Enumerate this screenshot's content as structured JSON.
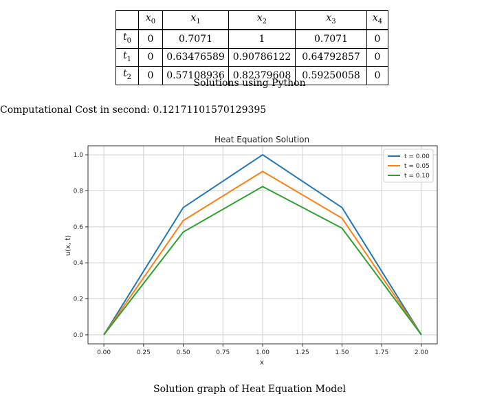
{
  "table": {
    "columns": [
      "x0",
      "x1",
      "x2",
      "x3",
      "x4"
    ],
    "rows": [
      {
        "label": "t0",
        "values": [
          "0",
          "0.7071",
          "1",
          "0.7071",
          "0"
        ]
      },
      {
        "label": "t1",
        "values": [
          "0",
          "0.63476589",
          "0.90786122",
          "0.64792857",
          "0"
        ]
      },
      {
        "label": "t2",
        "values": [
          "0",
          "0.57108936",
          "0.82379608",
          "0.59250058",
          "0"
        ]
      }
    ]
  },
  "table_caption": "Solutions using Python",
  "cost_text": "Computational Cost in second: 0.12171101570129395",
  "figure_caption": "Solution graph of Heat Equation Model",
  "chart_data": {
    "type": "line",
    "title": "Heat Equation Solution",
    "xlabel": "x",
    "ylabel": "u(x, t)",
    "x": [
      0.0,
      0.5,
      1.0,
      1.5,
      2.0
    ],
    "xlim": [
      -0.1,
      2.1
    ],
    "ylim": [
      -0.05,
      1.05
    ],
    "xticks": [
      "0.00",
      "0.25",
      "0.50",
      "0.75",
      "1.00",
      "1.25",
      "1.50",
      "1.75",
      "2.00"
    ],
    "yticks": [
      "0.0",
      "0.2",
      "0.4",
      "0.6",
      "0.8",
      "1.0"
    ],
    "grid": true,
    "legend_position": "top-right",
    "series": [
      {
        "name": "t = 0.00",
        "color": "#1f77b4",
        "values": [
          0,
          0.7071,
          1,
          0.7071,
          0
        ]
      },
      {
        "name": "t = 0.05",
        "color": "#ff7f0e",
        "values": [
          0,
          0.63476589,
          0.90786122,
          0.64792857,
          0
        ]
      },
      {
        "name": "t = 0.10",
        "color": "#2ca02c",
        "values": [
          0,
          0.57108936,
          0.82379608,
          0.59250058,
          0
        ]
      }
    ]
  }
}
